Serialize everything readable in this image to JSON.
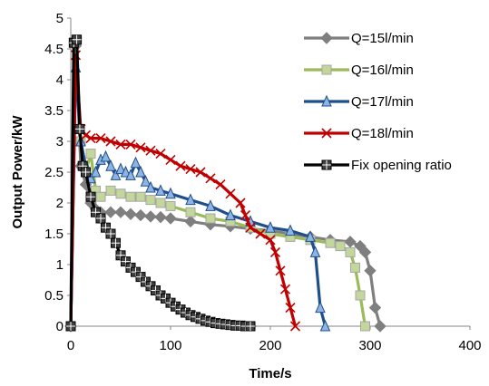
{
  "chart_data": {
    "type": "line",
    "title": "",
    "xlabel": "Time/s",
    "ylabel": "Output Power/kW",
    "xlim": [
      0,
      400
    ],
    "ylim": [
      0,
      5
    ],
    "xticks": [
      "0",
      "100",
      "200",
      "300",
      "400"
    ],
    "yticks": [
      "0",
      "0.5",
      "1",
      "1.5",
      "2",
      "2.5",
      "3",
      "3.5",
      "4",
      "4.5",
      "5"
    ],
    "grid": false,
    "legend_position": "top-right",
    "series": [
      {
        "name": "Q=15l/min",
        "color": "#7f7f7f",
        "marker": "diamond",
        "x": [
          0,
          5,
          10,
          15,
          20,
          25,
          30,
          40,
          50,
          60,
          70,
          80,
          90,
          100,
          120,
          140,
          160,
          180,
          200,
          220,
          240,
          260,
          280,
          290,
          295,
          300,
          305,
          310
        ],
        "y": [
          0,
          4.55,
          2.6,
          2.3,
          2.0,
          1.9,
          1.85,
          1.85,
          1.85,
          1.82,
          1.8,
          1.78,
          1.77,
          1.75,
          1.7,
          1.65,
          1.62,
          1.58,
          1.55,
          1.5,
          1.45,
          1.4,
          1.37,
          1.3,
          1.2,
          0.9,
          0.3,
          0
        ]
      },
      {
        "name": "Q=16l/min",
        "color": "#9bbb59",
        "marker": "square",
        "x": [
          0,
          5,
          10,
          15,
          20,
          25,
          30,
          40,
          50,
          60,
          70,
          80,
          90,
          100,
          120,
          140,
          160,
          180,
          200,
          220,
          240,
          260,
          270,
          280,
          285,
          290,
          295
        ],
        "y": [
          0,
          4.65,
          3.0,
          2.5,
          2.8,
          2.2,
          2.1,
          2.2,
          2.15,
          2.1,
          2.1,
          2.05,
          2.0,
          1.95,
          1.85,
          1.75,
          1.7,
          1.6,
          1.5,
          1.45,
          1.4,
          1.35,
          1.3,
          1.2,
          0.95,
          0.5,
          0
        ]
      },
      {
        "name": "Q=17l/min",
        "color": "#1f4e8c",
        "marker": "triangle",
        "x": [
          0,
          5,
          10,
          15,
          20,
          25,
          30,
          35,
          40,
          45,
          50,
          55,
          60,
          65,
          70,
          75,
          80,
          90,
          100,
          120,
          140,
          160,
          180,
          200,
          220,
          240,
          245,
          250,
          255
        ],
        "y": [
          0,
          4.2,
          3.0,
          2.6,
          2.4,
          2.5,
          2.7,
          2.75,
          2.6,
          2.45,
          2.55,
          2.5,
          2.45,
          2.65,
          2.5,
          2.35,
          2.25,
          2.2,
          2.15,
          2.05,
          1.95,
          1.8,
          1.7,
          1.6,
          1.55,
          1.45,
          1.2,
          0.3,
          0
        ]
      },
      {
        "name": "Q=18l/min",
        "color": "#c00000",
        "marker": "x",
        "x": [
          0,
          5,
          10,
          15,
          20,
          30,
          40,
          50,
          60,
          70,
          80,
          90,
          100,
          110,
          120,
          130,
          140,
          150,
          160,
          170,
          175,
          180,
          190,
          200,
          205,
          210,
          215,
          220,
          225
        ],
        "y": [
          0,
          4.4,
          3.2,
          3.1,
          3.05,
          3.05,
          3.0,
          2.95,
          2.95,
          2.9,
          2.85,
          2.8,
          2.7,
          2.6,
          2.55,
          2.5,
          2.4,
          2.3,
          2.15,
          2.0,
          1.8,
          1.6,
          1.5,
          1.4,
          1.2,
          0.9,
          0.6,
          0.3,
          0
        ]
      },
      {
        "name": "Fix opening ratio",
        "color": "#000000",
        "marker": "square-cross",
        "x": [
          0,
          3,
          6,
          9,
          12,
          15,
          20,
          25,
          30,
          35,
          40,
          45,
          50,
          55,
          60,
          65,
          70,
          75,
          80,
          85,
          90,
          95,
          100,
          105,
          110,
          115,
          120,
          125,
          130,
          135,
          140,
          145,
          150,
          155,
          160,
          165,
          170,
          175,
          180
        ],
        "y": [
          0,
          4.6,
          4.65,
          3.2,
          2.6,
          2.5,
          2.1,
          1.85,
          1.75,
          1.6,
          1.5,
          1.35,
          1.15,
          1.05,
          0.95,
          0.88,
          0.8,
          0.72,
          0.65,
          0.58,
          0.5,
          0.45,
          0.38,
          0.32,
          0.27,
          0.22,
          0.18,
          0.15,
          0.12,
          0.09,
          0.07,
          0.05,
          0.04,
          0.03,
          0.02,
          0.01,
          0.01,
          0.0,
          0.0
        ]
      }
    ]
  }
}
